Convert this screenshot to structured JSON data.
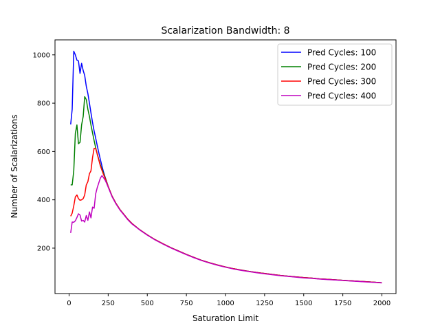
{
  "chart_data": {
    "type": "line",
    "title": "Scalarization Bandwidth: 8",
    "xlabel": "Saturation Limit",
    "ylabel": "Number of Scalarizations",
    "xlim": [
      -90,
      2090
    ],
    "ylim": [
      12,
      1062
    ],
    "xticks": [
      0,
      250,
      500,
      750,
      1000,
      1250,
      1500,
      1750,
      2000
    ],
    "yticks": [
      200,
      400,
      600,
      800,
      1000
    ],
    "grid": false,
    "legend": "top-right",
    "series": [
      {
        "name": "Pred Cycles: 100",
        "color": "#0000ff",
        "points": [
          [
            10,
            712
          ],
          [
            20,
            775
          ],
          [
            30,
            1015
          ],
          [
            40,
            1000
          ],
          [
            50,
            978
          ],
          [
            60,
            975
          ],
          [
            70,
            923
          ],
          [
            80,
            965
          ],
          [
            90,
            935
          ],
          [
            100,
            915
          ],
          [
            110,
            870
          ],
          [
            120,
            840
          ],
          [
            130,
            800
          ],
          [
            140,
            760
          ],
          [
            150,
            720
          ],
          [
            160,
            685
          ],
          [
            170,
            655
          ],
          [
            180,
            625
          ],
          [
            190,
            595
          ],
          [
            200,
            567
          ],
          [
            210,
            540
          ],
          [
            220,
            516
          ],
          [
            230,
            495
          ],
          [
            240,
            475
          ],
          [
            250,
            455
          ],
          [
            275,
            415
          ],
          [
            300,
            385
          ],
          [
            325,
            360
          ],
          [
            350,
            340
          ],
          [
            375,
            320
          ],
          [
            400,
            303
          ],
          [
            450,
            277
          ],
          [
            500,
            255
          ],
          [
            550,
            235
          ],
          [
            600,
            218
          ],
          [
            650,
            202
          ],
          [
            700,
            188
          ],
          [
            750,
            174
          ],
          [
            800,
            161
          ],
          [
            850,
            149
          ],
          [
            900,
            139
          ],
          [
            950,
            130
          ],
          [
            1000,
            122
          ],
          [
            1050,
            115
          ],
          [
            1100,
            109
          ],
          [
            1150,
            104
          ],
          [
            1200,
            99
          ],
          [
            1250,
            95
          ],
          [
            1300,
            91
          ],
          [
            1350,
            87
          ],
          [
            1400,
            84
          ],
          [
            1450,
            81
          ],
          [
            1500,
            78
          ],
          [
            1550,
            76
          ],
          [
            1600,
            73
          ],
          [
            1650,
            71
          ],
          [
            1700,
            69
          ],
          [
            1750,
            67
          ],
          [
            1800,
            65
          ],
          [
            1850,
            63
          ],
          [
            1900,
            61
          ],
          [
            1950,
            59
          ],
          [
            2000,
            57
          ]
        ]
      },
      {
        "name": "Pred Cycles: 200",
        "color": "#008000",
        "points": [
          [
            10,
            462
          ],
          [
            20,
            462
          ],
          [
            30,
            520
          ],
          [
            40,
            675
          ],
          [
            50,
            710
          ],
          [
            60,
            632
          ],
          [
            70,
            638
          ],
          [
            80,
            710
          ],
          [
            90,
            745
          ],
          [
            100,
            827
          ],
          [
            110,
            815
          ],
          [
            120,
            775
          ],
          [
            130,
            745
          ],
          [
            140,
            710
          ],
          [
            150,
            677
          ],
          [
            160,
            645
          ],
          [
            170,
            615
          ],
          [
            180,
            590
          ],
          [
            190,
            567
          ],
          [
            200,
            545
          ],
          [
            210,
            527
          ],
          [
            220,
            510
          ],
          [
            230,
            493
          ],
          [
            240,
            475
          ],
          [
            250,
            455
          ],
          [
            275,
            415
          ],
          [
            300,
            385
          ],
          [
            325,
            360
          ],
          [
            350,
            340
          ],
          [
            375,
            320
          ],
          [
            400,
            303
          ],
          [
            450,
            277
          ],
          [
            500,
            255
          ],
          [
            550,
            235
          ],
          [
            600,
            218
          ],
          [
            650,
            202
          ],
          [
            700,
            188
          ],
          [
            750,
            174
          ],
          [
            800,
            161
          ],
          [
            850,
            149
          ],
          [
            900,
            139
          ],
          [
            950,
            130
          ],
          [
            1000,
            122
          ],
          [
            1050,
            115
          ],
          [
            1100,
            109
          ],
          [
            1150,
            104
          ],
          [
            1200,
            99
          ],
          [
            1250,
            95
          ],
          [
            1300,
            91
          ],
          [
            1350,
            87
          ],
          [
            1400,
            84
          ],
          [
            1450,
            81
          ],
          [
            1500,
            78
          ],
          [
            1550,
            76
          ],
          [
            1600,
            73
          ],
          [
            1650,
            71
          ],
          [
            1700,
            69
          ],
          [
            1750,
            67
          ],
          [
            1800,
            65
          ],
          [
            1850,
            63
          ],
          [
            1900,
            61
          ],
          [
            1950,
            59
          ],
          [
            2000,
            57
          ]
        ]
      },
      {
        "name": "Pred Cycles: 300",
        "color": "#ff0000",
        "points": [
          [
            10,
            332
          ],
          [
            20,
            345
          ],
          [
            30,
            375
          ],
          [
            40,
            412
          ],
          [
            50,
            420
          ],
          [
            60,
            405
          ],
          [
            70,
            398
          ],
          [
            80,
            400
          ],
          [
            90,
            405
          ],
          [
            100,
            420
          ],
          [
            110,
            462
          ],
          [
            120,
            475
          ],
          [
            130,
            508
          ],
          [
            140,
            520
          ],
          [
            150,
            575
          ],
          [
            160,
            613
          ],
          [
            170,
            612
          ],
          [
            180,
            590
          ],
          [
            190,
            565
          ],
          [
            200,
            540
          ],
          [
            210,
            522
          ],
          [
            220,
            505
          ],
          [
            230,
            490
          ],
          [
            240,
            472
          ],
          [
            250,
            455
          ],
          [
            275,
            415
          ],
          [
            300,
            385
          ],
          [
            325,
            360
          ],
          [
            350,
            340
          ],
          [
            375,
            320
          ],
          [
            400,
            303
          ],
          [
            450,
            277
          ],
          [
            500,
            255
          ],
          [
            550,
            235
          ],
          [
            600,
            218
          ],
          [
            650,
            202
          ],
          [
            700,
            188
          ],
          [
            750,
            174
          ],
          [
            800,
            161
          ],
          [
            850,
            149
          ],
          [
            900,
            139
          ],
          [
            950,
            130
          ],
          [
            1000,
            122
          ],
          [
            1050,
            115
          ],
          [
            1100,
            109
          ],
          [
            1150,
            104
          ],
          [
            1200,
            99
          ],
          [
            1250,
            95
          ],
          [
            1300,
            91
          ],
          [
            1350,
            87
          ],
          [
            1400,
            84
          ],
          [
            1450,
            81
          ],
          [
            1500,
            78
          ],
          [
            1550,
            76
          ],
          [
            1600,
            73
          ],
          [
            1650,
            71
          ],
          [
            1700,
            69
          ],
          [
            1750,
            67
          ],
          [
            1800,
            65
          ],
          [
            1850,
            63
          ],
          [
            1900,
            61
          ],
          [
            1950,
            59
          ],
          [
            2000,
            57
          ]
        ]
      },
      {
        "name": "Pred Cycles: 400",
        "color": "#bf00bf",
        "points": [
          [
            10,
            263
          ],
          [
            20,
            308
          ],
          [
            30,
            307
          ],
          [
            40,
            313
          ],
          [
            50,
            327
          ],
          [
            60,
            342
          ],
          [
            70,
            337
          ],
          [
            80,
            312
          ],
          [
            90,
            315
          ],
          [
            100,
            308
          ],
          [
            110,
            335
          ],
          [
            120,
            315
          ],
          [
            130,
            350
          ],
          [
            140,
            325
          ],
          [
            150,
            370
          ],
          [
            160,
            365
          ],
          [
            170,
            425
          ],
          [
            180,
            450
          ],
          [
            190,
            470
          ],
          [
            200,
            490
          ],
          [
            210,
            500
          ],
          [
            220,
            492
          ],
          [
            230,
            482
          ],
          [
            240,
            468
          ],
          [
            250,
            452
          ],
          [
            275,
            413
          ],
          [
            300,
            383
          ],
          [
            325,
            358
          ],
          [
            350,
            338
          ],
          [
            375,
            318
          ],
          [
            400,
            301
          ],
          [
            450,
            276
          ],
          [
            500,
            254
          ],
          [
            550,
            234
          ],
          [
            600,
            217
          ],
          [
            650,
            201
          ],
          [
            700,
            187
          ],
          [
            750,
            173
          ],
          [
            800,
            160
          ],
          [
            850,
            148
          ],
          [
            900,
            138
          ],
          [
            950,
            129
          ],
          [
            1000,
            121
          ],
          [
            1050,
            114
          ],
          [
            1100,
            108
          ],
          [
            1150,
            103
          ],
          [
            1200,
            98
          ],
          [
            1250,
            94
          ],
          [
            1300,
            90
          ],
          [
            1350,
            86
          ],
          [
            1400,
            83
          ],
          [
            1450,
            80
          ],
          [
            1500,
            77
          ],
          [
            1550,
            75
          ],
          [
            1600,
            72
          ],
          [
            1650,
            70
          ],
          [
            1700,
            68
          ],
          [
            1750,
            66
          ],
          [
            1800,
            64
          ],
          [
            1850,
            62
          ],
          [
            1900,
            60
          ],
          [
            1950,
            58
          ],
          [
            2000,
            56
          ]
        ]
      }
    ]
  }
}
